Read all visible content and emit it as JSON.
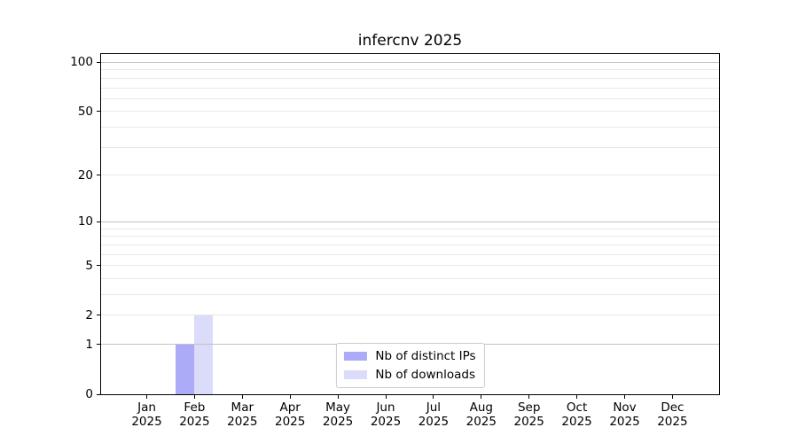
{
  "chart_data": {
    "type": "bar",
    "title": "infercnv 2025",
    "xlabel": "",
    "ylabel": "",
    "categories": [
      "Jan",
      "Feb",
      "Mar",
      "Apr",
      "May",
      "Jun",
      "Jul",
      "Aug",
      "Sep",
      "Oct",
      "Nov",
      "Dec"
    ],
    "category_year": "2025",
    "series": [
      {
        "name": "Nb of distinct IPs",
        "color": "#ababf8",
        "values": [
          0,
          1,
          0,
          0,
          0,
          0,
          0,
          0,
          0,
          0,
          0,
          0
        ]
      },
      {
        "name": "Nb of downloads",
        "color": "#dbdbfa",
        "values": [
          0,
          2,
          0,
          0,
          0,
          0,
          0,
          0,
          0,
          0,
          0,
          0
        ]
      }
    ],
    "y_scale": "log1p",
    "y_major_ticks": [
      0,
      1,
      2,
      5,
      10,
      20,
      50,
      100
    ],
    "y_minor_grid": [
      3,
      4,
      6,
      7,
      8,
      9,
      30,
      40,
      60,
      70,
      80,
      90
    ],
    "y_decade_grid": [
      1,
      10,
      100
    ],
    "ylim": [
      0,
      113
    ],
    "grid": "horizontal, drawn above bars",
    "legend_position": "lower center"
  },
  "colors": {
    "background": "#ffffff",
    "spine": "#000000",
    "grid_decade": "#c2c2c2",
    "grid_minor": "#e8e8e8",
    "legend_border": "#cccccc",
    "text": "#000000"
  }
}
